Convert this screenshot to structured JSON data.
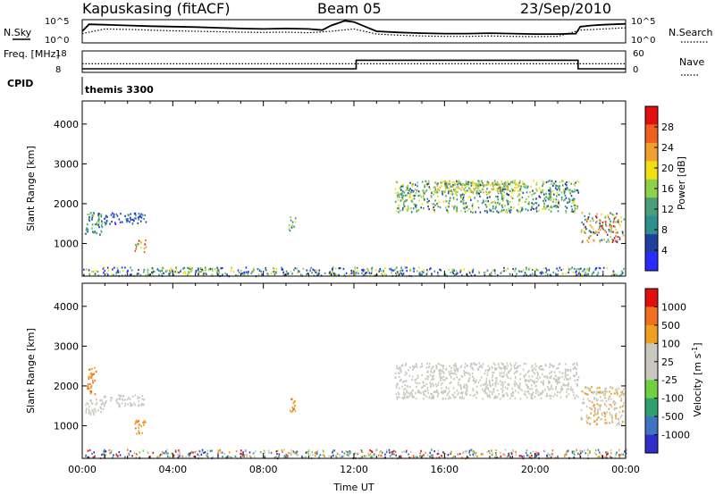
{
  "header": {
    "station": "Kapuskasing (fitACF)",
    "beam": "Beam 05",
    "date": "23/Sep/2010"
  },
  "colors": {
    "power_scale": [
      "#2b2bff",
      "#2040a0",
      "#2f8f8f",
      "#4a9e7a",
      "#8fd04a",
      "#f0e010",
      "#f0a030",
      "#f06020",
      "#e01010"
    ],
    "velocity_scale": [
      "#3030c8",
      "#3f75c0",
      "#2f9f70",
      "#70d040",
      "#c8c8c0",
      "#c8c8c0",
      "#f0a020",
      "#f07020",
      "#e01010"
    ]
  },
  "chart_data": [
    {
      "type": "line",
      "panel": "noise",
      "left_label": "N.Sky",
      "right_label": "N.Search",
      "left_ticks": [
        "10^5",
        "10^0"
      ],
      "right_ticks": [
        "10^5",
        "10^0"
      ],
      "x_ticks": [
        "00:00",
        "04:00",
        "08:00",
        "12:00",
        "16:00",
        "20:00",
        "00:00"
      ],
      "xlim": [
        0,
        24
      ],
      "series": [
        {
          "name": "N.Sky",
          "style": "solid",
          "x": [
            0,
            0.3,
            1,
            2,
            3,
            4,
            5,
            6,
            7,
            8,
            9,
            10,
            10.6,
            11,
            11.6,
            12,
            12.5,
            13,
            14,
            15,
            16,
            17,
            18,
            19,
            20,
            21,
            21.8,
            22,
            22.5,
            23,
            24
          ],
          "y": [
            0.5,
            0.8,
            0.78,
            0.75,
            0.72,
            0.7,
            0.68,
            0.65,
            0.62,
            0.6,
            0.62,
            0.6,
            0.55,
            0.75,
            0.95,
            0.9,
            0.7,
            0.5,
            0.45,
            0.42,
            0.4,
            0.4,
            0.42,
            0.4,
            0.38,
            0.38,
            0.4,
            0.7,
            0.75,
            0.78,
            0.82
          ]
        },
        {
          "name": "N.Search",
          "style": "dotted",
          "x": [
            0,
            1,
            2,
            3,
            4,
            5,
            6,
            7,
            8,
            9,
            10,
            11,
            12,
            13,
            14,
            15,
            16,
            17,
            18,
            19,
            20,
            21,
            22,
            23,
            24
          ],
          "y": [
            0.4,
            0.6,
            0.58,
            0.55,
            0.52,
            0.5,
            0.48,
            0.46,
            0.45,
            0.46,
            0.44,
            0.5,
            0.6,
            0.38,
            0.33,
            0.3,
            0.28,
            0.28,
            0.3,
            0.28,
            0.27,
            0.28,
            0.55,
            0.6,
            0.65
          ]
        }
      ]
    },
    {
      "type": "line",
      "panel": "frequency",
      "left_label": "Freq. [MHz]",
      "right_label": "Nave",
      "left_ticks": [
        "18",
        "8"
      ],
      "right_ticks": [
        "60",
        "0"
      ],
      "xlim": [
        0,
        24
      ],
      "series": [
        {
          "name": "Freq.",
          "style": "dotted",
          "x": [
            0,
            24
          ],
          "y": [
            12,
            12
          ]
        },
        {
          "name": "Nave",
          "style": "solid",
          "x": [
            0,
            12.1,
            12.1,
            21.9,
            21.9,
            24
          ],
          "y": [
            10,
            10,
            34,
            34,
            10,
            10
          ]
        }
      ]
    },
    {
      "type": "table",
      "panel": "cpid",
      "label": "CPID",
      "value": "themis 3300"
    },
    {
      "type": "heatmap",
      "panel": "power",
      "ylabel": "Slant Range [km]",
      "y_ticks": [
        1000,
        2000,
        3000,
        4000
      ],
      "ylim": [
        180,
        4580
      ],
      "xlim": [
        0,
        24
      ],
      "colorbar_label": "Power [dB]",
      "colorbar_ticks": [
        "4",
        "8",
        "12",
        "16",
        "20",
        "24",
        "28"
      ],
      "regions": [
        {
          "t": [
            0.1,
            0.9
          ],
          "r": [
            1200,
            1800
          ],
          "level": [
            1,
            4
          ]
        },
        {
          "t": [
            0.9,
            2.8
          ],
          "r": [
            1500,
            1800
          ],
          "level": [
            0,
            2
          ]
        },
        {
          "t": [
            2.3,
            2.8
          ],
          "r": [
            800,
            1100
          ],
          "level": [
            3,
            8
          ]
        },
        {
          "t": [
            9.1,
            9.4
          ],
          "r": [
            1300,
            1700
          ],
          "level": [
            2,
            5
          ]
        },
        {
          "t": [
            13.8,
            21.9
          ],
          "r": [
            1800,
            2600
          ],
          "level": [
            1,
            5
          ]
        },
        {
          "t": [
            15.5,
            19.5
          ],
          "r": [
            2300,
            2600
          ],
          "level": [
            3,
            6
          ]
        },
        {
          "t": [
            22.0,
            23.9
          ],
          "r": [
            1050,
            1800
          ],
          "level": [
            1,
            8
          ]
        },
        {
          "t": [
            0,
            24
          ],
          "r": [
            200,
            420
          ],
          "level": [
            0,
            5
          ]
        }
      ]
    },
    {
      "type": "heatmap",
      "panel": "velocity",
      "ylabel": "Slant Range [km]",
      "y_ticks": [
        1000,
        2000,
        3000,
        4000
      ],
      "ylim": [
        180,
        4580
      ],
      "xlim": [
        0,
        24
      ],
      "xlabel": "Time UT",
      "x_ticks": [
        "00:00",
        "04:00",
        "08:00",
        "12:00",
        "16:00",
        "20:00",
        "00:00"
      ],
      "colorbar_label": "Velocity [m s^-1]",
      "colorbar_ticks": [
        "1000",
        "500",
        "100",
        "25",
        "-25",
        "-100",
        "-500",
        "-1000"
      ],
      "regions": [
        {
          "t": [
            0.1,
            0.9
          ],
          "r": [
            1300,
            1700
          ],
          "level": [
            4,
            5
          ]
        },
        {
          "t": [
            0.9,
            2.8
          ],
          "r": [
            1500,
            1800
          ],
          "level": [
            4,
            5
          ]
        },
        {
          "t": [
            0.2,
            0.6
          ],
          "r": [
            1800,
            2500
          ],
          "level": [
            6,
            7
          ]
        },
        {
          "t": [
            2.3,
            2.8
          ],
          "r": [
            800,
            1200
          ],
          "level": [
            6,
            7
          ]
        },
        {
          "t": [
            9.1,
            9.4
          ],
          "r": [
            1300,
            1800
          ],
          "level": [
            6,
            7
          ]
        },
        {
          "t": [
            13.8,
            21.9
          ],
          "r": [
            1700,
            2600
          ],
          "level": [
            4,
            5
          ]
        },
        {
          "t": [
            22.0,
            23.9
          ],
          "r": [
            1050,
            2000
          ],
          "level": [
            4,
            6
          ]
        },
        {
          "t": [
            0,
            24
          ],
          "r": [
            200,
            420
          ],
          "level": [
            0,
            8
          ]
        }
      ]
    }
  ]
}
